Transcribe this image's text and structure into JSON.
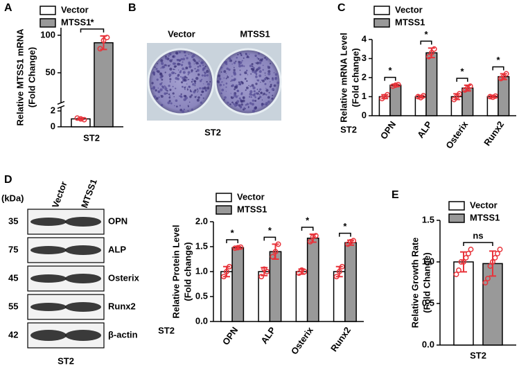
{
  "figure": {
    "panel_labels": [
      "A",
      "B",
      "C",
      "D",
      "E"
    ],
    "photo": {
      "columns": [
        "Vector",
        "MTSS1"
      ],
      "caption": "ST2"
    },
    "blot": {
      "unit": "(kDa)",
      "lanes": [
        "Vector",
        "MTSS1"
      ],
      "rows": [
        {
          "kda": 35,
          "protein": "OPN"
        },
        {
          "kda": 75,
          "protein": "ALP"
        },
        {
          "kda": 45,
          "protein": "Osterix"
        },
        {
          "kda": 55,
          "protein": "Runx2"
        },
        {
          "kda": 42,
          "protein": "β-actin"
        }
      ],
      "caption": "ST2"
    }
  },
  "chart_data": [
    {
      "type": "bar",
      "ylabel": [
        "Relative MTSS1 mRNA",
        "(Fold Change)"
      ],
      "xlabel": "ST2",
      "categories": [
        null
      ],
      "series": [
        {
          "name": "Vector",
          "color": "#ffffff",
          "values": [
            1.0
          ],
          "errors": [
            0.1
          ],
          "points": [
            [
              1.1,
              1.0,
              0.9
            ]
          ]
        },
        {
          "name": "MTSS1",
          "color": "#999999",
          "values": [
            90
          ],
          "errors": [
            9
          ],
          "points": [
            [
              82,
              93,
              97
            ]
          ]
        }
      ],
      "significance": [
        "*"
      ],
      "ylim": [
        0,
        110
      ],
      "ybreak": [
        2.5,
        10
      ],
      "yticks": [
        0,
        2,
        50,
        100
      ],
      "legend": "top-left"
    },
    {
      "type": "bar",
      "ylabel": [
        "Relative mRNA Level",
        "(Fold change)"
      ],
      "xlabel": "ST2",
      "categories": [
        "OPN",
        "ALP",
        "Osterix",
        "Runx2"
      ],
      "series": [
        {
          "name": "Vector",
          "color": "#ffffff",
          "values": [
            1.0,
            1.0,
            1.0,
            1.0
          ],
          "errors": [
            0.1,
            0.07,
            0.15,
            0.05
          ],
          "points": [
            [
              0.9,
              1.0,
              1.1
            ],
            [
              1.0,
              0.95,
              1.05
            ],
            [
              0.85,
              1.0,
              1.15
            ],
            [
              1.0,
              0.97,
              1.03
            ]
          ]
        },
        {
          "name": "MTSS1",
          "color": "#999999",
          "values": [
            1.6,
            3.3,
            1.45,
            2.05
          ],
          "errors": [
            0.05,
            0.25,
            0.15,
            0.15
          ],
          "points": [
            [
              1.55,
              1.6,
              1.63
            ],
            [
              3.1,
              3.3,
              3.5
            ],
            [
              1.35,
              1.45,
              1.55
            ],
            [
              1.95,
              2.05,
              2.2
            ]
          ]
        }
      ],
      "significance": [
        "*",
        "*",
        "*",
        "*"
      ],
      "ylim": [
        0,
        4
      ],
      "yticks": [
        0,
        1,
        2,
        3,
        4
      ],
      "legend": "top-left"
    },
    {
      "type": "bar",
      "ylabel": [
        "Relative Protein Level",
        "(Fold change)"
      ],
      "xlabel": "ST2",
      "categories": [
        "OPN",
        "ALP",
        "Osterix",
        "Runx2"
      ],
      "series": [
        {
          "name": "Vector",
          "color": "#ffffff",
          "values": [
            1.0,
            1.0,
            1.0,
            1.0
          ],
          "errors": [
            0.1,
            0.08,
            0.05,
            0.1
          ],
          "points": [
            [
              0.9,
              1.0,
              1.1
            ],
            [
              0.9,
              1.05,
              1.0
            ],
            [
              0.97,
              1.03,
              1.0
            ],
            [
              0.9,
              1.0,
              1.1
            ]
          ]
        },
        {
          "name": "MTSS1",
          "color": "#999999",
          "values": [
            1.48,
            1.4,
            1.67,
            1.58
          ],
          "errors": [
            0.02,
            0.15,
            0.08,
            0.05
          ],
          "points": [
            [
              1.47,
              1.48,
              1.49
            ],
            [
              1.3,
              1.4,
              1.55
            ],
            [
              1.6,
              1.7,
              1.72
            ],
            [
              1.55,
              1.6,
              1.62
            ]
          ]
        }
      ],
      "significance": [
        "*",
        "*",
        "*",
        "*"
      ],
      "ylim": [
        0,
        2.0
      ],
      "yticks": [
        {
          "value": 0,
          "label": "0.0"
        },
        {
          "value": 0.5,
          "label": "0.5"
        },
        {
          "value": 1,
          "label": "1.0"
        },
        {
          "value": 1.5,
          "label": "1.5"
        },
        {
          "value": 2,
          "label": "2.0"
        }
      ],
      "legend": "top-left"
    },
    {
      "type": "bar",
      "ylabel": [
        "Relative Growth Rate",
        "(Fold Change)"
      ],
      "categories": [
        "ST2"
      ],
      "series": [
        {
          "name": "Vector",
          "color": "#ffffff",
          "values": [
            1.0
          ],
          "errors": [
            0.12
          ],
          "points": [
            [
              0.85,
              0.9,
              1.0,
              1.0,
              1.05,
              1.1,
              1.15
            ]
          ]
        },
        {
          "name": "MTSS1",
          "color": "#999999",
          "values": [
            0.98
          ],
          "errors": [
            0.15
          ],
          "points": [
            [
              0.75,
              0.8,
              0.95,
              1.0,
              1.05,
              1.1,
              1.15
            ]
          ]
        }
      ],
      "significance": [
        "ns"
      ],
      "ylim": [
        0,
        1.5
      ],
      "yticks": [
        {
          "value": 0,
          "label": "0.0"
        },
        {
          "value": 0.5,
          "label": "0.5"
        },
        {
          "value": 1,
          "label": "1.0"
        },
        {
          "value": 1.5,
          "label": "1.5"
        }
      ],
      "legend": "top-left"
    }
  ]
}
